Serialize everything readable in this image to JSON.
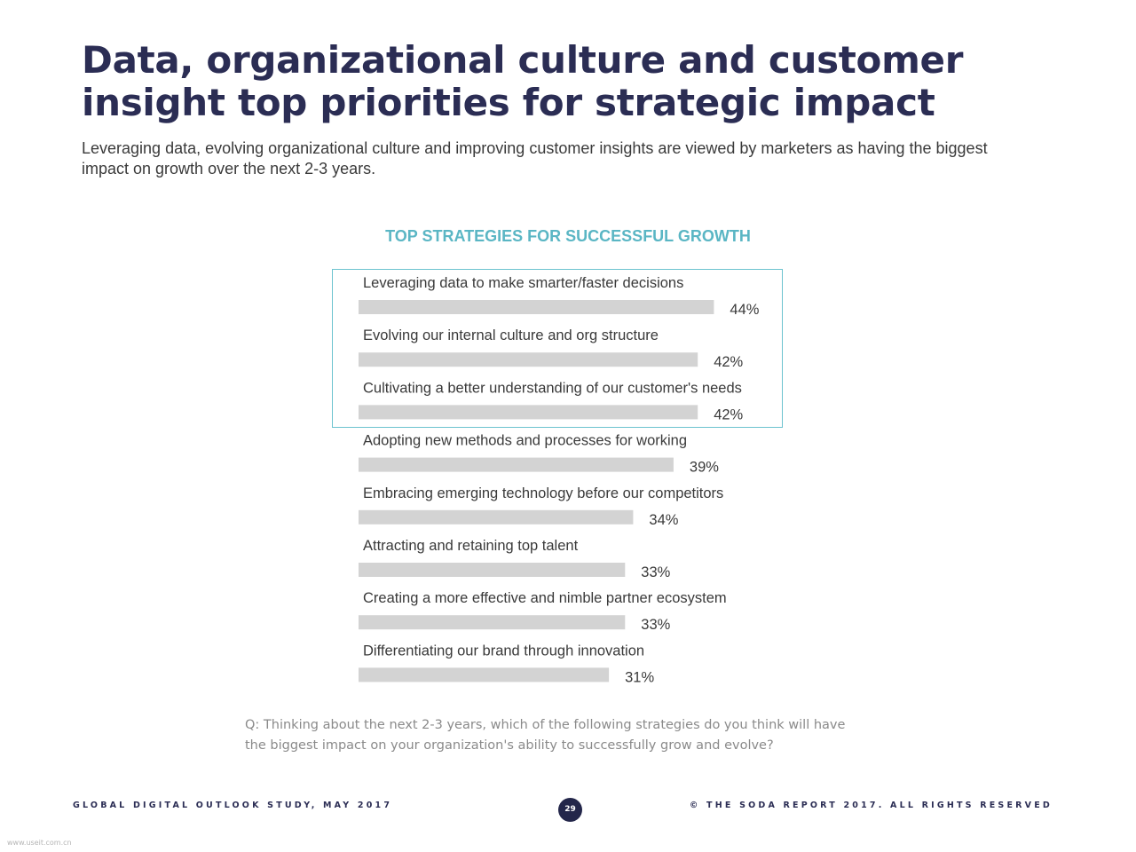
{
  "header": {
    "title": "Data, organizational culture and customer insight top priorities for strategic impact",
    "subtitle": "Leveraging data, evolving organizational culture and improving customer insights are viewed by marketers as having the biggest impact on growth over the next 2-3 years."
  },
  "chart_data": {
    "type": "bar",
    "orientation": "horizontal",
    "title": "TOP STRATEGIES FOR SUCCESSFUL GROWTH",
    "categories": [
      "Leveraging data to make smarter/faster decisions",
      "Evolving our internal culture and org structure",
      "Cultivating a better understanding of our customer's needs",
      "Adopting new methods and processes for working",
      "Embracing emerging technology before our competitors",
      "Attracting and retaining top talent",
      "Creating a more effective and nimble partner ecosystem",
      "Differentiating our brand through innovation"
    ],
    "values": [
      44,
      42,
      42,
      39,
      34,
      33,
      33,
      31
    ],
    "value_labels": [
      "44%",
      "42%",
      "42%",
      "39%",
      "34%",
      "33%",
      "33%",
      "31%"
    ],
    "bar_color": "#d3d3d3",
    "highlighted_count": 3,
    "highlight_color": "#6cc3cf",
    "grid": false,
    "legend": "none"
  },
  "question": "Q: Thinking about the next 2-3 years, which of the following strategies do you think will have the biggest impact on your organization's ability to successfully grow and evolve?",
  "footer": {
    "left": "GLOBAL DIGITAL OUTLOOK STUDY, MAY 2017",
    "page_number": "29",
    "right": "© THE SODA REPORT 2017. ALL RIGHTS RESERVED"
  },
  "watermark": "www.useit.com.cn"
}
